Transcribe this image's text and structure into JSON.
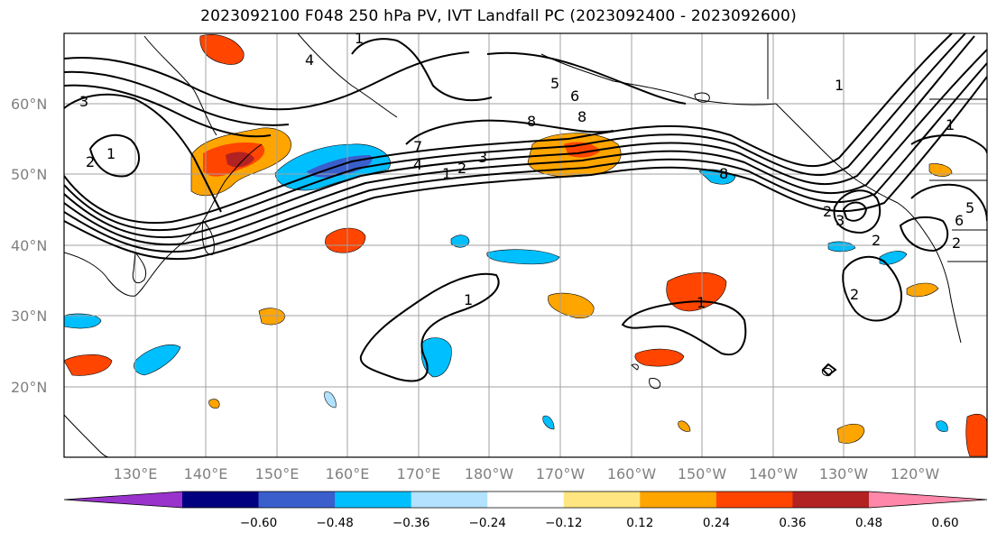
{
  "title": "2023092100 F048 250 hPa PV, IVT Landfall PC (2023092400 - 2023092600)",
  "latitude_labels": [
    "60°N",
    "50°N",
    "40°N",
    "30°N",
    "20°N"
  ],
  "longitude_labels": [
    "130°E",
    "140°E",
    "150°E",
    "160°E",
    "170°E",
    "180°W",
    "170°W",
    "160°W",
    "150°W",
    "140°W",
    "130°W",
    "120°W"
  ],
  "contour_labels": [
    "3",
    "1",
    "2",
    "7",
    "4",
    "1",
    "2",
    "3",
    "5",
    "6",
    "8",
    "8",
    "8",
    "1",
    "1",
    "3",
    "2",
    "5",
    "6",
    "2",
    "1",
    "1",
    "2",
    "4",
    "1",
    "2"
  ],
  "colorbar": {
    "tick_labels": [
      "−0.60",
      "−0.48",
      "−0.36",
      "−0.24",
      "−0.12",
      "0.12",
      "0.24",
      "0.36",
      "0.48",
      "0.60"
    ],
    "colors": [
      "#9933cc",
      "#000080",
      "#3a5fcd",
      "#00bfff",
      "#b2e2ff",
      "#ffffff",
      "#ffe680",
      "#ffa500",
      "#ff4500",
      "#b22222",
      "#ff88aa"
    ]
  },
  "chart_data": {
    "type": "heatmap",
    "title": "2023092100 F048 250 hPa PV, IVT Landfall PC (2023092400 - 2023092600)",
    "lon_range": [
      "120°E",
      "115°W"
    ],
    "lat_range": [
      "10°N",
      "70°N"
    ],
    "grid": true,
    "colorbar_levels": [
      -0.6,
      -0.48,
      -0.36,
      -0.24,
      -0.12,
      0.12,
      0.24,
      0.36,
      0.48,
      0.6
    ],
    "contour_field": "250 hPa PV",
    "shaded_field": "IVT Landfall PC"
  }
}
